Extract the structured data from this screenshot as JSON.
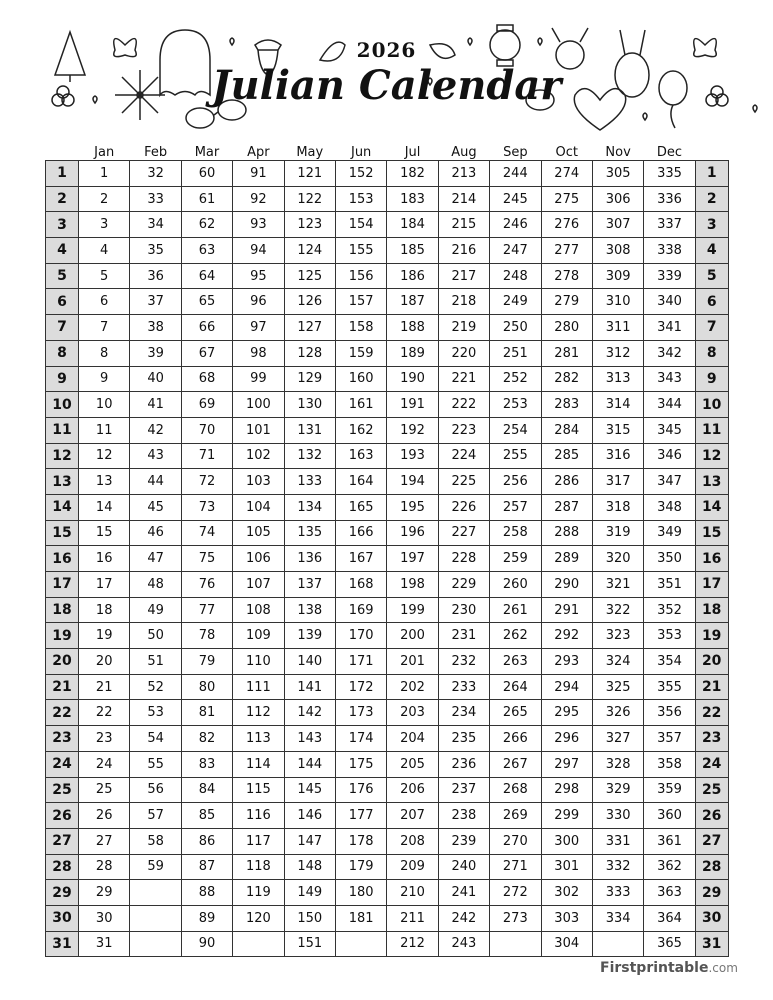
{
  "header": {
    "year": "2026",
    "title": "Julian Calendar"
  },
  "months": [
    "Jan",
    "Feb",
    "Mar",
    "Apr",
    "May",
    "Jun",
    "Jul",
    "Aug",
    "Sep",
    "Oct",
    "Nov",
    "Dec"
  ],
  "rows": [
    [
      1,
      32,
      60,
      91,
      121,
      152,
      182,
      213,
      244,
      274,
      305,
      335
    ],
    [
      2,
      33,
      61,
      92,
      122,
      153,
      183,
      214,
      245,
      275,
      306,
      336
    ],
    [
      3,
      34,
      62,
      93,
      123,
      154,
      184,
      215,
      246,
      276,
      307,
      337
    ],
    [
      4,
      35,
      63,
      94,
      124,
      155,
      185,
      216,
      247,
      277,
      308,
      338
    ],
    [
      5,
      36,
      64,
      95,
      125,
      156,
      186,
      217,
      248,
      278,
      309,
      339
    ],
    [
      6,
      37,
      65,
      96,
      126,
      157,
      187,
      218,
      249,
      279,
      310,
      340
    ],
    [
      7,
      38,
      66,
      97,
      127,
      158,
      188,
      219,
      250,
      280,
      311,
      341
    ],
    [
      8,
      39,
      67,
      98,
      128,
      159,
      189,
      220,
      251,
      281,
      312,
      342
    ],
    [
      9,
      40,
      68,
      99,
      129,
      160,
      190,
      221,
      252,
      282,
      313,
      343
    ],
    [
      10,
      41,
      69,
      100,
      130,
      161,
      191,
      222,
      253,
      283,
      314,
      344
    ],
    [
      11,
      42,
      70,
      101,
      131,
      162,
      192,
      223,
      254,
      284,
      315,
      345
    ],
    [
      12,
      43,
      71,
      102,
      132,
      163,
      193,
      224,
      255,
      285,
      316,
      346
    ],
    [
      13,
      44,
      72,
      103,
      133,
      164,
      194,
      225,
      256,
      286,
      317,
      347
    ],
    [
      14,
      45,
      73,
      104,
      134,
      165,
      195,
      226,
      257,
      287,
      318,
      348
    ],
    [
      15,
      46,
      74,
      105,
      135,
      166,
      196,
      227,
      258,
      288,
      319,
      349
    ],
    [
      16,
      47,
      75,
      106,
      136,
      167,
      197,
      228,
      259,
      289,
      320,
      350
    ],
    [
      17,
      48,
      76,
      107,
      137,
      168,
      198,
      229,
      260,
      290,
      321,
      351
    ],
    [
      18,
      49,
      77,
      108,
      138,
      169,
      199,
      230,
      261,
      291,
      322,
      352
    ],
    [
      19,
      50,
      78,
      109,
      139,
      170,
      200,
      231,
      262,
      292,
      323,
      353
    ],
    [
      20,
      51,
      79,
      110,
      140,
      171,
      201,
      232,
      263,
      293,
      324,
      354
    ],
    [
      21,
      52,
      80,
      111,
      141,
      172,
      202,
      233,
      264,
      294,
      325,
      355
    ],
    [
      22,
      53,
      81,
      112,
      142,
      173,
      203,
      234,
      265,
      295,
      326,
      356
    ],
    [
      23,
      54,
      82,
      113,
      143,
      174,
      204,
      235,
      266,
      296,
      327,
      357
    ],
    [
      24,
      55,
      83,
      114,
      144,
      175,
      205,
      236,
      267,
      297,
      328,
      358
    ],
    [
      25,
      56,
      84,
      115,
      145,
      176,
      206,
      237,
      268,
      298,
      329,
      359
    ],
    [
      26,
      57,
      85,
      116,
      146,
      177,
      207,
      238,
      269,
      299,
      330,
      360
    ],
    [
      27,
      58,
      86,
      117,
      147,
      178,
      208,
      239,
      270,
      300,
      331,
      361
    ],
    [
      28,
      59,
      87,
      118,
      148,
      179,
      209,
      240,
      271,
      301,
      332,
      362
    ],
    [
      29,
      "",
      88,
      119,
      149,
      180,
      210,
      241,
      272,
      302,
      333,
      363
    ],
    [
      30,
      "",
      89,
      120,
      150,
      181,
      211,
      242,
      273,
      303,
      334,
      364
    ],
    [
      31,
      "",
      90,
      "",
      151,
      "",
      212,
      243,
      "",
      304,
      "",
      365
    ]
  ],
  "footer": {
    "brand": "Firstprintable",
    "suffix": ".com"
  }
}
